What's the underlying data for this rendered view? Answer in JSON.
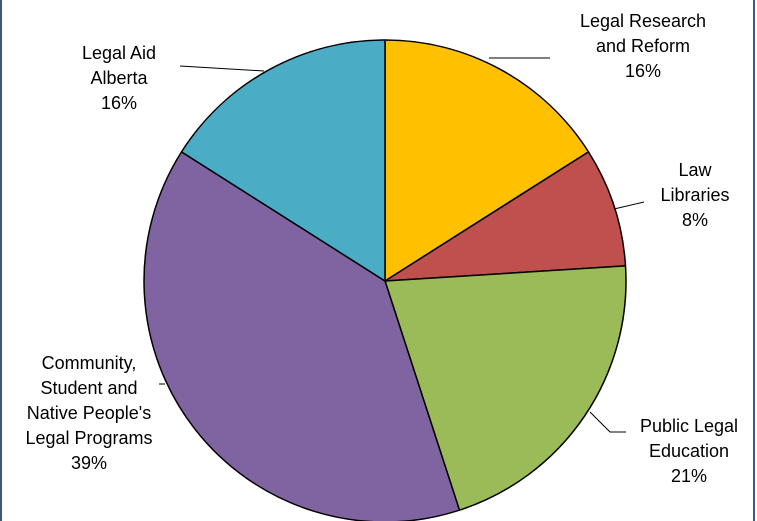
{
  "chart_data": {
    "type": "pie",
    "title": "",
    "start_angle_deg": 0,
    "direction": "clockwise",
    "slices": [
      {
        "label_lines": [
          "Legal Research",
          "and Reform"
        ],
        "pct_text": "16%",
        "value": 16,
        "color": "#FFC000"
      },
      {
        "label_lines": [
          "Law",
          "Libraries"
        ],
        "pct_text": "8%",
        "value": 8,
        "color": "#C0504D"
      },
      {
        "label_lines": [
          "Public Legal",
          "Education"
        ],
        "pct_text": "21%",
        "value": 21,
        "color": "#9BBB59"
      },
      {
        "label_lines": [
          "Community,",
          "Student and",
          "Native People's",
          "Legal Programs"
        ],
        "pct_text": "39%",
        "value": 39,
        "color": "#8064A2"
      },
      {
        "label_lines": [
          "Legal Aid",
          "Alberta"
        ],
        "pct_text": "16%",
        "value": 16,
        "color": "#4BACC6"
      }
    ],
    "legend": "none"
  }
}
